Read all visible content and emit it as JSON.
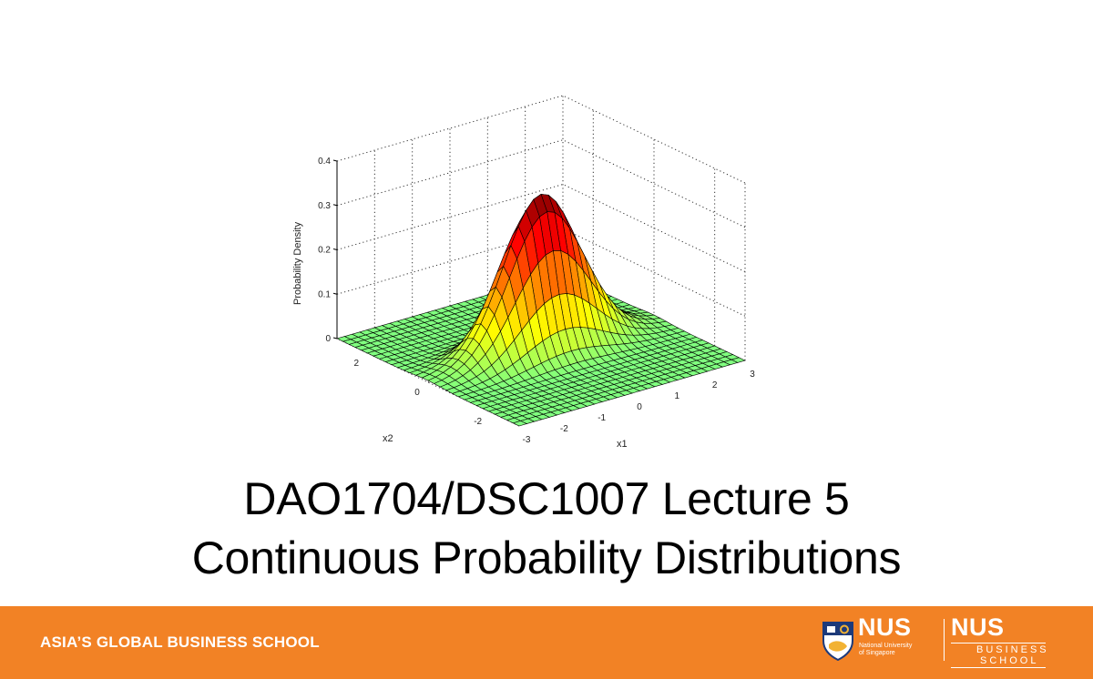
{
  "slide": {
    "title_line1": "DAO1704/DSC1007 Lecture 5",
    "title_line2": "Continuous Probability Distributions"
  },
  "footer": {
    "tagline": "ASIA’S GLOBAL BUSINESS SCHOOL",
    "background": "#f28225",
    "logo": {
      "name": "NUS",
      "subtitle_line1": "National University",
      "subtitle_line2": "of Singapore",
      "school_name": "NUS",
      "school_line1": "BUSINESS",
      "school_line2": "SCHOOL"
    }
  },
  "chart_data": {
    "type": "surface3d",
    "title": "",
    "xlabel": "x1",
    "ylabel": "x2",
    "zlabel": "Probability Density",
    "x_ticks": [
      "-3",
      "-2",
      "-1",
      "0",
      "1",
      "2",
      "3"
    ],
    "y_ticks": [
      "-2",
      "0",
      "2"
    ],
    "z_ticks": [
      "0",
      "0.1",
      "0.2",
      "0.3",
      "0.4"
    ],
    "xlim": [
      -3,
      3
    ],
    "ylim": [
      -3,
      3
    ],
    "zlim": [
      0,
      0.4
    ],
    "grid": true,
    "colormap": "jet",
    "function": "bivariate normal density",
    "mean": [
      0,
      0
    ],
    "sigma_x1": 1,
    "sigma_x2": 0.45,
    "peak_value": 0.35,
    "grid_points": 31
  }
}
